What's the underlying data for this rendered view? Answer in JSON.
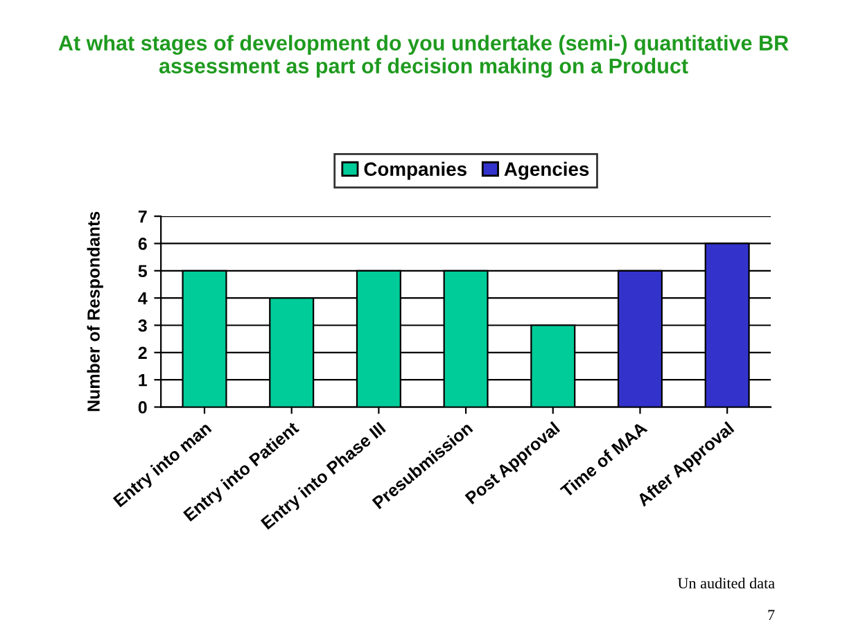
{
  "chart_data": {
    "type": "bar",
    "title": "At what stages of development do you undertake (semi-) quantitative BR assessment as part of decision making on a Product",
    "ylabel": "Number of Respondants",
    "categories": [
      "Entry into man",
      "Entry into Patient",
      "Entry into Phase III",
      "Presubmission",
      "Post Approval",
      "Time of MAA",
      "After Approval"
    ],
    "series": [
      {
        "name": "Companies",
        "color": "#00cc99",
        "values": [
          5,
          4,
          5,
          5,
          3,
          null,
          null
        ]
      },
      {
        "name": "Agencies",
        "color": "#3333cc",
        "values": [
          null,
          null,
          null,
          null,
          null,
          5,
          6
        ]
      }
    ],
    "ylim": [
      0,
      7
    ],
    "yticks": [
      0,
      1,
      2,
      3,
      4,
      5,
      6,
      7
    ],
    "grid": "y",
    "legend": "top",
    "annotations": [
      "Un audited data",
      "7"
    ]
  }
}
